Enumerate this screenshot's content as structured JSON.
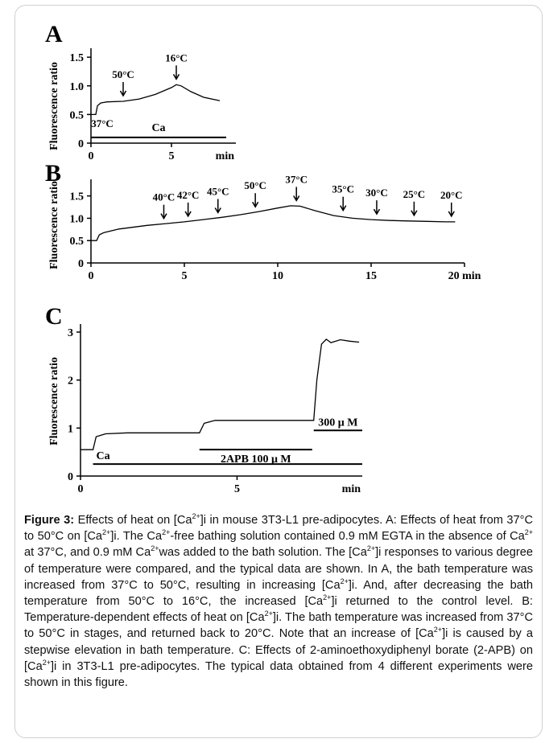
{
  "caption": {
    "label": "Figure 3:",
    "lines": [
      " Effects of heat on [Ca2+]i in mouse 3T3-L1 pre-adipocytes. A: Effects of heat from 37°C to 50°C on [Ca2+]i. The Ca2+-free bathing solution contained 0.9 mM EGTA in the absence of Ca2+ at 37°C, and 0.9 mM Ca2+was added to the bath solution. The [Ca2+]i responses to various degree of temperature were compared, and the typical data are shown. In A, the bath temperature was increased from 37°C to 50°C, resulting in increasing [Ca2+]i. And, after decreasing the bath temperature from 50°C to 16°C, the increased [Ca2+]i returned to the control level. B: Temperature-dependent effects of heat on [Ca2+]i. The bath temperature was increased from 37°C to 50°C in stages, and returned back to 20°C. Note that an increase of [Ca2+]i is caused by a stepwise elevation in bath temperature. C: Effects of 2-aminoethoxydiphenyl borate (2-APB) on [Ca2+]i in 3T3-L1 pre-adipocytes. The typical data obtained from 4 different experiments were shown in this figure."
    ]
  },
  "chart_data": [
    {
      "panel": "A",
      "type": "line",
      "ylabel": "Fluorescence ratio",
      "xlim": [
        0,
        9
      ],
      "ylim": [
        0,
        1.6
      ],
      "x_ticks": [
        "0",
        "5"
      ],
      "x_tick_values": [
        0,
        5
      ],
      "x_unit": "min",
      "y_ticks": [
        "0",
        "0.5",
        "1.0",
        "1.5"
      ],
      "y_tick_values": [
        0,
        0.5,
        1.0,
        1.5
      ],
      "series": [
        {
          "x": [
            0,
            0.3,
            0.4,
            0.6,
            1.0,
            2.0,
            3.0,
            4.0,
            5.0,
            5.3,
            5.6,
            6.2,
            7.0,
            8.0
          ],
          "values": [
            0.5,
            0.5,
            0.65,
            0.7,
            0.72,
            0.73,
            0.77,
            0.85,
            0.97,
            1.02,
            1.0,
            0.9,
            0.8,
            0.74
          ]
        }
      ],
      "annotations": [
        {
          "label": "37°C",
          "x": 0.7,
          "y": 0.28,
          "arrow": false
        },
        {
          "label": "50°C",
          "x": 2.0,
          "y": 0.73,
          "arrow": true
        },
        {
          "label": "16°C",
          "x": 5.3,
          "y": 1.02,
          "arrow": true
        }
      ],
      "bars": [
        {
          "label": "Ca",
          "x": [
            0,
            8.4
          ],
          "y": 0.1
        }
      ]
    },
    {
      "panel": "B",
      "type": "line",
      "ylabel": "Fluorescence ratio",
      "xlim": [
        0,
        20
      ],
      "ylim": [
        0,
        1.8
      ],
      "x_ticks": [
        "0",
        "5",
        "10",
        "15",
        "20 min"
      ],
      "x_tick_values": [
        0,
        5,
        10,
        15,
        20
      ],
      "y_ticks": [
        "0",
        "0.5",
        "1.0",
        "1.5"
      ],
      "y_tick_values": [
        0,
        0.5,
        1.0,
        1.5
      ],
      "series": [
        {
          "x": [
            0,
            0.3,
            0.45,
            0.7,
            1.5,
            3.0,
            4.0,
            5.0,
            6.0,
            7.0,
            8.0,
            9.0,
            10.0,
            10.7,
            11.2,
            12.0,
            13.0,
            14.0,
            15.0,
            16.0,
            17.0,
            18.0,
            19.0,
            19.5
          ],
          "values": [
            0.5,
            0.5,
            0.63,
            0.68,
            0.76,
            0.84,
            0.88,
            0.92,
            0.97,
            1.02,
            1.08,
            1.15,
            1.23,
            1.28,
            1.27,
            1.17,
            1.06,
            1.0,
            0.97,
            0.95,
            0.94,
            0.93,
            0.92,
            0.92
          ]
        }
      ],
      "annotations": [
        {
          "label": "40°C",
          "x": 3.9,
          "y": 0.87,
          "arrow": true
        },
        {
          "label": "42°C",
          "x": 5.2,
          "y": 0.92,
          "arrow": true
        },
        {
          "label": "45°C",
          "x": 6.8,
          "y": 1.0,
          "arrow": true
        },
        {
          "label": "50°C",
          "x": 8.8,
          "y": 1.13,
          "arrow": true
        },
        {
          "label": "37°C",
          "x": 11.0,
          "y": 1.27,
          "arrow": true
        },
        {
          "label": "35°C",
          "x": 13.5,
          "y": 1.05,
          "arrow": true
        },
        {
          "label": "30°C",
          "x": 15.3,
          "y": 0.97,
          "arrow": true
        },
        {
          "label": "25°C",
          "x": 17.3,
          "y": 0.94,
          "arrow": true
        },
        {
          "label": "20°C",
          "x": 19.3,
          "y": 0.92,
          "arrow": true
        }
      ]
    },
    {
      "panel": "C",
      "type": "line",
      "ylabel": "Fluorescence ratio",
      "xlim": [
        0,
        9
      ],
      "ylim": [
        0,
        3.1
      ],
      "x_ticks": [
        "0",
        "5"
      ],
      "x_tick_values": [
        0,
        5
      ],
      "x_unit": "min",
      "y_ticks": [
        "0",
        "1",
        "2",
        "3"
      ],
      "y_tick_values": [
        0,
        1,
        2,
        3
      ],
      "series": [
        {
          "x": [
            0,
            0.4,
            0.5,
            0.8,
            1.5,
            3.0,
            3.8,
            3.95,
            4.3,
            5.0,
            6.0,
            7.0,
            7.45,
            7.55,
            7.7,
            7.85,
            8.0,
            8.3,
            8.6,
            8.9
          ],
          "values": [
            0.55,
            0.55,
            0.82,
            0.88,
            0.9,
            0.9,
            0.9,
            1.1,
            1.16,
            1.16,
            1.16,
            1.16,
            1.16,
            2.0,
            2.75,
            2.85,
            2.78,
            2.84,
            2.81,
            2.79
          ]
        }
      ],
      "bars": [
        {
          "label": "Ca",
          "x": [
            0.4,
            9.0
          ],
          "y": 0.25
        },
        {
          "label": "2APB 100 μ M",
          "x": [
            3.8,
            7.4
          ],
          "y": 0.55
        },
        {
          "label": "300 μ M",
          "x": [
            7.45,
            9.0
          ],
          "y": 0.95
        }
      ]
    }
  ],
  "labels": {
    "panelA": "A",
    "panelB": "B",
    "panelC": "C",
    "ylabel": "Fluorescence ratio",
    "min": "min",
    "ca": "Ca"
  }
}
